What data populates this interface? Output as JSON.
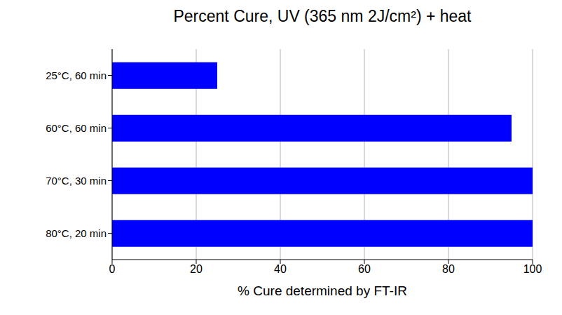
{
  "chart_data": {
    "type": "bar",
    "title": "Percent Cure, UV (365 nm 2J/cm²) + heat",
    "x_label": "% Cure determined by FT-IR",
    "categories": [
      "25°C, 60 min",
      "60°C, 60 min",
      "70°C, 30 min",
      "80°C, 20 min"
    ],
    "values": [
      25,
      95,
      100,
      100
    ],
    "color": "#0000ff",
    "xlim": [
      0,
      100
    ],
    "xticks": [
      0,
      20,
      40,
      60,
      80,
      100
    ],
    "grid": true,
    "orientation": "horizontal"
  }
}
